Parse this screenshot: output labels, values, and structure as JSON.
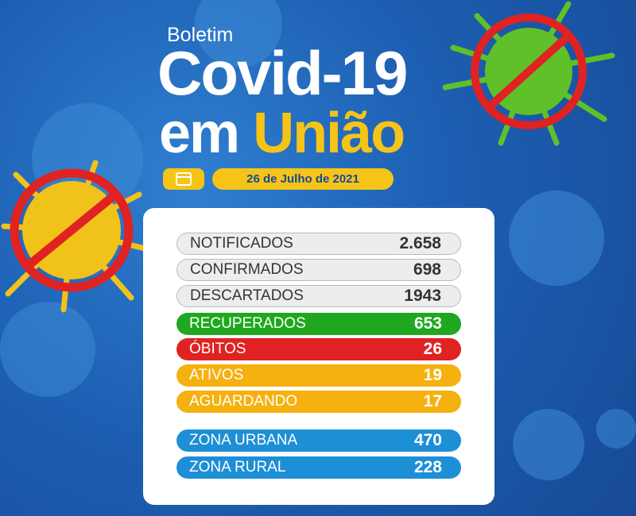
{
  "header": {
    "kicker": "Boletim",
    "title": "Covid-19",
    "subtitle_prefix": "em",
    "subtitle_place": "União",
    "date": "26 de Julho de 2021"
  },
  "table": {
    "rows": [
      [
        "NOTIFICADOS",
        "2.658"
      ],
      [
        "CONFIRMADOS",
        "698"
      ],
      [
        "DESCARTADOS",
        "1943"
      ],
      [
        "RECUPERADOS",
        "653"
      ],
      [
        "ÓBITOS",
        "26"
      ],
      [
        "ATIVOS",
        "19"
      ],
      [
        "AGUARDANDO",
        "17"
      ],
      [
        "ZONA URBANA",
        "470"
      ],
      [
        "ZONA RURAL",
        "228"
      ]
    ]
  }
}
